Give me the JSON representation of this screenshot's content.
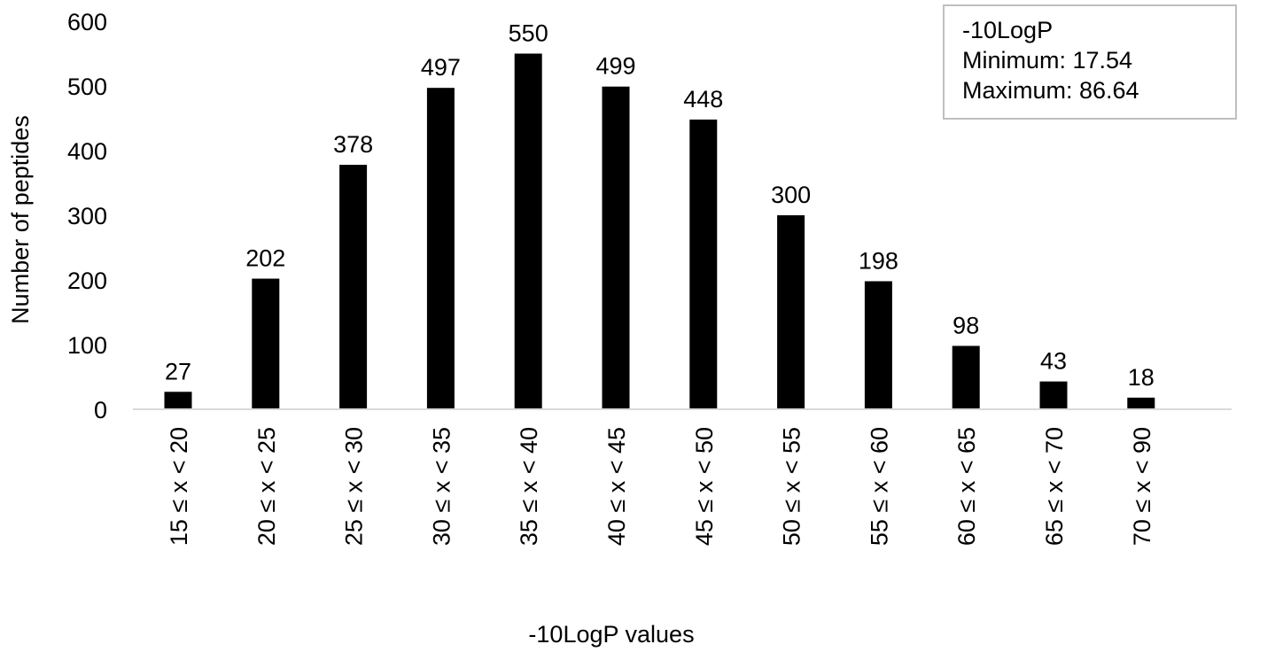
{
  "chart_data": {
    "type": "bar",
    "categories": [
      "15 ≤ x < 20",
      "20 ≤ x < 25",
      "25 ≤ x < 30",
      "30 ≤ x < 35",
      "35 ≤ x < 40",
      "40 ≤ x < 45",
      "45 ≤ x < 50",
      "50 ≤ x < 55",
      "55 ≤ x < 60",
      "60 ≤ x < 65",
      "65 ≤ x < 70",
      "70 ≤ x < 90"
    ],
    "values": [
      27,
      202,
      378,
      497,
      550,
      499,
      448,
      300,
      198,
      98,
      43,
      18
    ],
    "xlabel": "-10LogP values",
    "ylabel": "Number of peptides",
    "ylim": [
      0,
      600
    ],
    "yticks": [
      0,
      100,
      200,
      300,
      400,
      500,
      600
    ],
    "grid": false,
    "bar_color": "#000000",
    "axis_color": "#d9d9d9",
    "data_labels": true,
    "annotation": {
      "lines": [
        "-10LogP",
        "Minimum: 17.54",
        "Maximum: 86.64"
      ],
      "placement": "top-right"
    }
  }
}
